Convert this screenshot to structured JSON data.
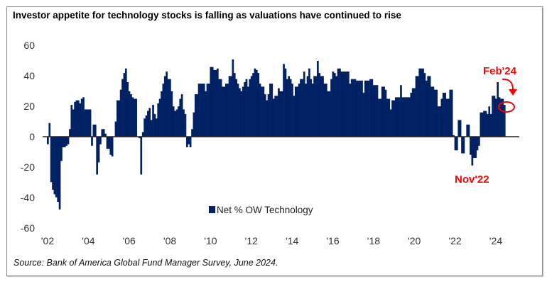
{
  "title": "Investor appetite for technology stocks is falling as valuations have continued to rise",
  "source": "Source: Bank of America Global Fund Manager Survey, June 2024.",
  "chart_data": {
    "type": "bar",
    "title": "Investor appetite for technology stocks is falling as valuations have continued to rise",
    "series": [
      {
        "name": "Net % OW Technology",
        "color": "#002163",
        "start": "2002-01",
        "frequency": "monthly",
        "values": [
          -5,
          9,
          -30,
          -35,
          -38,
          -40,
          -43,
          -48,
          -16,
          -7,
          -7,
          -6,
          -5,
          5,
          21,
          18,
          23,
          24,
          24,
          22,
          25,
          26,
          18,
          18,
          18,
          18,
          -6,
          8,
          8,
          -25,
          -17,
          -5,
          5,
          5,
          2,
          -8,
          -8,
          -12,
          -13,
          0,
          10,
          24,
          24,
          31,
          38,
          42,
          45,
          36,
          30,
          28,
          26,
          25,
          25,
          0,
          -1,
          -25,
          3,
          12,
          14,
          17,
          19,
          11,
          21,
          15,
          12,
          22,
          25,
          30,
          35,
          40,
          43,
          38,
          38,
          30,
          20,
          17,
          18,
          20,
          25,
          28,
          18,
          15,
          -7,
          -5,
          -7,
          5,
          16,
          28,
          28,
          35,
          35,
          35,
          35,
          30,
          35,
          35,
          46,
          46,
          44,
          44,
          45,
          38,
          38,
          33,
          33,
          35,
          35,
          40,
          40,
          51,
          42,
          38,
          35,
          32,
          30,
          33,
          36,
          38,
          33,
          38,
          40,
          42,
          45,
          44,
          42,
          35,
          33,
          33,
          28,
          24,
          28,
          35,
          35,
          25,
          27,
          27,
          32,
          30,
          30,
          48,
          45,
          38,
          40,
          38,
          35,
          27,
          33,
          33,
          35,
          38,
          38,
          43,
          35,
          40,
          45,
          38,
          35,
          40,
          40,
          50,
          42,
          40,
          40,
          35,
          35,
          30,
          30,
          38,
          43,
          42,
          40,
          45,
          45,
          43,
          43,
          43,
          43,
          43,
          35,
          38,
          38,
          38,
          37,
          37,
          37,
          37,
          29,
          37,
          37,
          37,
          38,
          38,
          34,
          34,
          34,
          25,
          25,
          33,
          33,
          31,
          25,
          25,
          18,
          24,
          24,
          26,
          26,
          26,
          34,
          26,
          26,
          26,
          26,
          26,
          29,
          32,
          32,
          40,
          40,
          45,
          45,
          45,
          42,
          37,
          40,
          40,
          33,
          33,
          31,
          31,
          20,
          20,
          25,
          29,
          29,
          25,
          25,
          31,
          31,
          1,
          -9,
          -9,
          11,
          11,
          -11,
          -11,
          0,
          8,
          8,
          -12,
          -19,
          -14,
          -14,
          -9,
          -6,
          16,
          16,
          17,
          17,
          15,
          20,
          15,
          27,
          27,
          25,
          36,
          26,
          25,
          25,
          21
        ]
      }
    ],
    "xlabel": "",
    "ylabel": "",
    "ylim": [
      -60,
      60
    ],
    "yticks": [
      "60",
      "40",
      "20",
      "0",
      "-20",
      "-40",
      "-60"
    ],
    "xlim": [
      2002,
      2026
    ],
    "xticks": [
      "'02",
      "'04",
      "'06",
      "'08",
      "'10",
      "'12",
      "'14",
      "'16",
      "'18",
      "'20",
      "'22",
      "'24"
    ],
    "grid": false,
    "legend": {
      "position": "bottom-center",
      "label": "Net % OW Technology"
    },
    "annotations": [
      {
        "text": "Feb'24",
        "color": "#ff0000"
      },
      {
        "text": "Nov'22",
        "color": "#ff0000"
      }
    ]
  }
}
